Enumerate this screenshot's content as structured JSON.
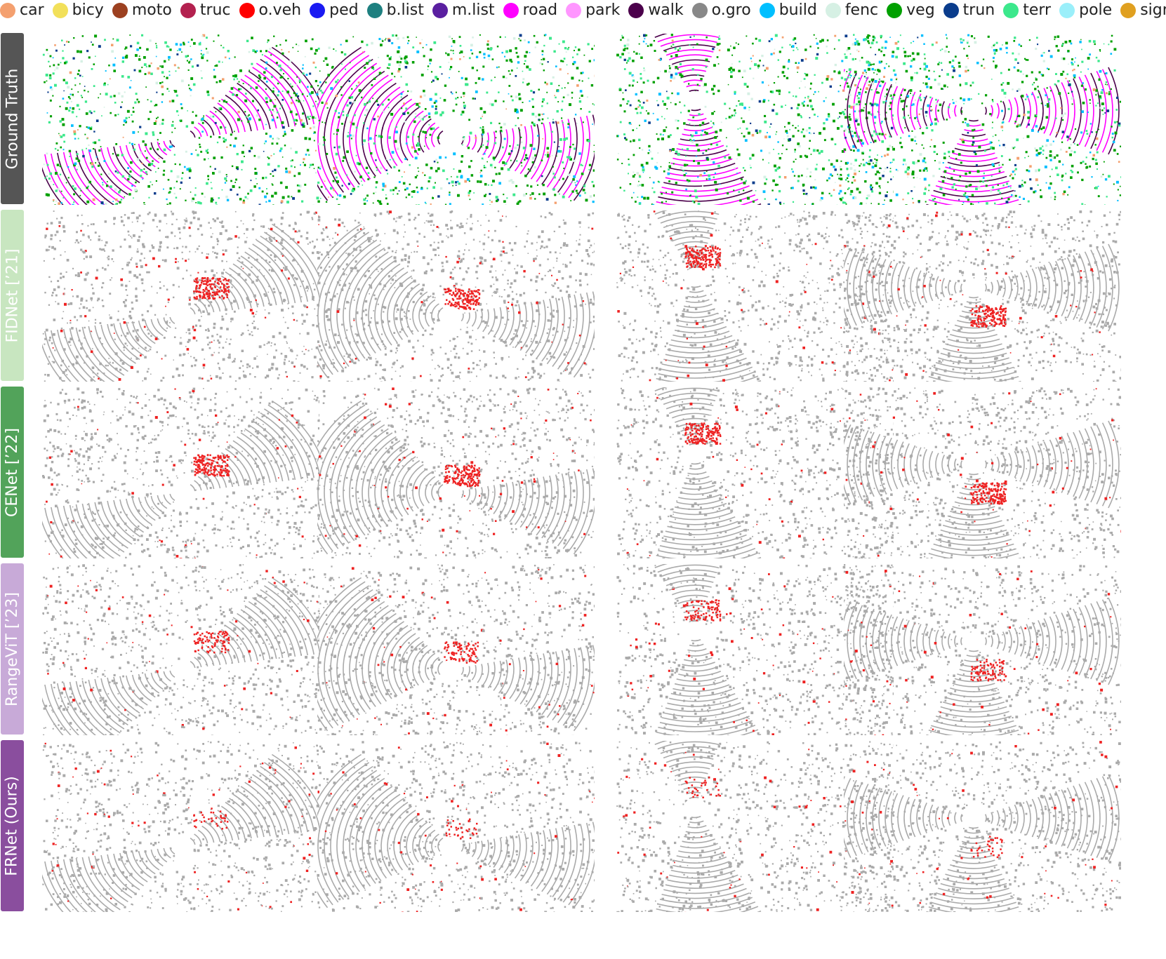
{
  "legend": {
    "items": [
      {
        "label": "car",
        "color": "#F4A06F"
      },
      {
        "label": "bicy",
        "color": "#F2E05A"
      },
      {
        "label": "moto",
        "color": "#9C4020"
      },
      {
        "label": "truc",
        "color": "#B3214F"
      },
      {
        "label": "o.veh",
        "color": "#FF0000"
      },
      {
        "label": "ped",
        "color": "#1A1AF2"
      },
      {
        "label": "b.list",
        "color": "#1E8080"
      },
      {
        "label": "m.list",
        "color": "#5A1FA0"
      },
      {
        "label": "road",
        "color": "#FF00FF"
      },
      {
        "label": "park",
        "color": "#FF96FF"
      },
      {
        "label": "walk",
        "color": "#4B004B"
      },
      {
        "label": "o.gro",
        "color": "#888888"
      },
      {
        "label": "build",
        "color": "#00BFFF"
      },
      {
        "label": "fenc",
        "color": "#D6F0E4"
      },
      {
        "label": "veg",
        "color": "#00A000"
      },
      {
        "label": "trun",
        "color": "#0A3C8C"
      },
      {
        "label": "terr",
        "color": "#3CE88C"
      },
      {
        "label": "pole",
        "color": "#9BEFFA"
      },
      {
        "label": "sign",
        "color": "#E0A020"
      }
    ]
  },
  "rows": [
    {
      "label": "Ground Truth",
      "color": "#555555"
    },
    {
      "label": "FIDNet [’21]",
      "color": "#C8E6C0"
    },
    {
      "label": "CENet [’22]",
      "color": "#52A35A"
    },
    {
      "label": "RangeViT [’23]",
      "color": "#C8AAD8"
    },
    {
      "label": "FRNet (Ours)",
      "color": "#8A4E9E"
    }
  ],
  "colors": {
    "gray_points": "#AAAAAA",
    "error_points": "#EE2222"
  }
}
